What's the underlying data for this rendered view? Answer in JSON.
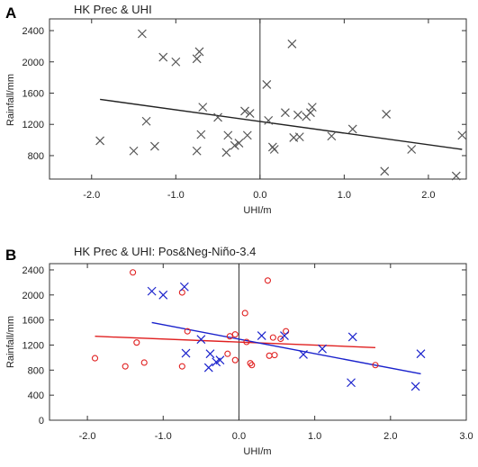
{
  "chart_data": [
    {
      "panel_label": "A",
      "type": "scatter",
      "title": "HK Prec & UHI",
      "xlabel": "UHI/m",
      "ylabel": "Rainfall/mm",
      "xlim": [
        -2.5,
        2.45
      ],
      "ylim": [
        500,
        2550
      ],
      "x_ticks": [
        -2.0,
        -1.0,
        0.0,
        1.0,
        2.0
      ],
      "x_tick_labels": [
        "-2.0",
        "-1.0",
        "0.0",
        "1.0",
        "2.0"
      ],
      "y_ticks": [
        800,
        1200,
        1600,
        2000,
        2400
      ],
      "y_tick_labels": [
        "800",
        "1200",
        "1600",
        "2000",
        "2400"
      ],
      "zero_line_x": 0,
      "series": [
        {
          "marker": "x",
          "color": "#555555",
          "points": [
            [
              -1.9,
              990
            ],
            [
              -1.5,
              860
            ],
            [
              -1.4,
              2360
            ],
            [
              -1.35,
              1240
            ],
            [
              -1.25,
              920
            ],
            [
              -1.15,
              2060
            ],
            [
              -1.0,
              2000
            ],
            [
              -0.75,
              2040
            ],
            [
              -0.72,
              2130
            ],
            [
              -0.75,
              860
            ],
            [
              -0.7,
              1070
            ],
            [
              -0.68,
              1420
            ],
            [
              -0.5,
              1290
            ],
            [
              -0.4,
              840
            ],
            [
              -0.38,
              1060
            ],
            [
              -0.3,
              930
            ],
            [
              -0.25,
              960
            ],
            [
              -0.18,
              1370
            ],
            [
              -0.12,
              1340
            ],
            [
              -0.15,
              1060
            ],
            [
              0.08,
              1710
            ],
            [
              0.1,
              1250
            ],
            [
              0.15,
              910
            ],
            [
              0.17,
              880
            ],
            [
              0.3,
              1350
            ],
            [
              0.38,
              2230
            ],
            [
              0.4,
              1030
            ],
            [
              0.45,
              1320
            ],
            [
              0.47,
              1040
            ],
            [
              0.55,
              1300
            ],
            [
              0.6,
              1350
            ],
            [
              0.62,
              1420
            ],
            [
              0.85,
              1050
            ],
            [
              1.1,
              1140
            ],
            [
              1.5,
              1330
            ],
            [
              1.48,
              600
            ],
            [
              1.8,
              880
            ],
            [
              2.33,
              540
            ],
            [
              2.4,
              1060
            ]
          ]
        }
      ],
      "trend_lines": [
        {
          "color": "#222222",
          "x": [
            -1.9,
            2.4
          ],
          "y": [
            1520,
            880
          ]
        }
      ]
    },
    {
      "panel_label": "B",
      "type": "scatter",
      "title": "HK Prec & UHI: Pos&Neg-Niño-3.4",
      "xlabel": "UHI/m",
      "ylabel": "Rainfall/mm",
      "xlim": [
        -2.5,
        3.0
      ],
      "ylim": [
        0,
        2500
      ],
      "x_ticks": [
        -2.0,
        -1.0,
        0.0,
        1.0,
        2.0,
        3.0
      ],
      "x_tick_labels": [
        "-2.0",
        "-1.0",
        "0.0",
        "1.0",
        "2.0",
        "3.0"
      ],
      "y_ticks": [
        0,
        400,
        800,
        1200,
        1600,
        2000,
        2400
      ],
      "y_tick_labels": [
        "0",
        "400",
        "800",
        "1200",
        "1600",
        "2000",
        "2400"
      ],
      "zero_line_x": 0,
      "series": [
        {
          "marker": "o",
          "color": "#e02020",
          "points": [
            [
              -1.9,
              990
            ],
            [
              -1.5,
              860
            ],
            [
              -1.4,
              2360
            ],
            [
              -1.35,
              1240
            ],
            [
              -1.25,
              920
            ],
            [
              -0.75,
              2040
            ],
            [
              -0.75,
              860
            ],
            [
              -0.68,
              1420
            ],
            [
              -0.15,
              1060
            ],
            [
              -0.12,
              1340
            ],
            [
              -0.05,
              1370
            ],
            [
              0.08,
              1710
            ],
            [
              0.1,
              1250
            ],
            [
              0.15,
              910
            ],
            [
              0.17,
              880
            ],
            [
              0.38,
              2230
            ],
            [
              0.4,
              1030
            ],
            [
              0.45,
              1320
            ],
            [
              0.47,
              1040
            ],
            [
              0.55,
              1300
            ],
            [
              0.62,
              1420
            ],
            [
              1.8,
              880
            ],
            [
              -0.05,
              960
            ]
          ]
        },
        {
          "marker": "x",
          "color": "#1a22cc",
          "points": [
            [
              -1.15,
              2060
            ],
            [
              -1.0,
              2000
            ],
            [
              -0.72,
              2130
            ],
            [
              -0.7,
              1070
            ],
            [
              -0.5,
              1290
            ],
            [
              -0.4,
              840
            ],
            [
              -0.38,
              1060
            ],
            [
              -0.3,
              930
            ],
            [
              -0.25,
              960
            ],
            [
              0.3,
              1350
            ],
            [
              0.6,
              1350
            ],
            [
              0.85,
              1050
            ],
            [
              1.1,
              1140
            ],
            [
              1.5,
              1330
            ],
            [
              1.48,
              600
            ],
            [
              2.33,
              540
            ],
            [
              2.4,
              1060
            ]
          ]
        }
      ],
      "trend_lines": [
        {
          "color": "#e02020",
          "x": [
            -1.9,
            1.8
          ],
          "y": [
            1340,
            1160
          ]
        },
        {
          "color": "#1a22cc",
          "x": [
            -1.15,
            2.4
          ],
          "y": [
            1560,
            740
          ]
        }
      ]
    }
  ]
}
